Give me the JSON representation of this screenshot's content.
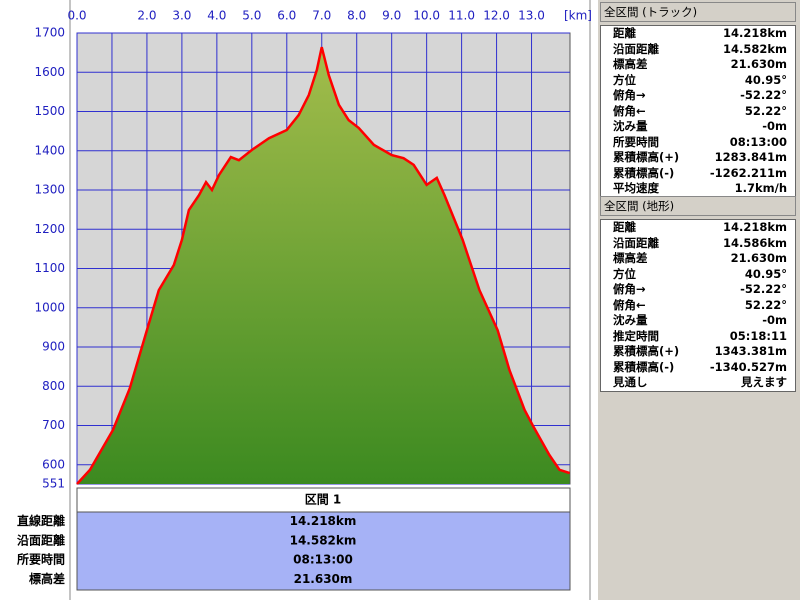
{
  "chart_data": {
    "type": "area",
    "x_unit": "[km]",
    "x": [
      0,
      0.37,
      1.03,
      1.51,
      2.0,
      2.34,
      2.77,
      3.0,
      3.2,
      3.49,
      3.69,
      3.86,
      4.06,
      4.4,
      4.63,
      5.0,
      5.49,
      6.0,
      6.34,
      6.63,
      6.86,
      7.0,
      7.2,
      7.49,
      7.77,
      8.06,
      8.49,
      9.0,
      9.34,
      9.63,
      10.0,
      10.29,
      10.51,
      11.03,
      11.51,
      12.03,
      12.37,
      12.8,
      13.03,
      13.51,
      13.8,
      14.09
    ],
    "values": [
      551,
      587,
      689,
      795,
      943,
      1045,
      1109,
      1173,
      1249,
      1287,
      1320,
      1300,
      1338,
      1384,
      1376,
      1402,
      1432,
      1453,
      1491,
      1542,
      1606,
      1664,
      1593,
      1517,
      1478,
      1458,
      1415,
      1389,
      1381,
      1364,
      1313,
      1331,
      1287,
      1173,
      1045,
      943,
      841,
      740,
      701,
      625,
      587,
      579
    ],
    "fill_top": "#a4bd4c",
    "fill_bottom": "#3c8a20",
    "line_color": "#ff0000",
    "xlim": [
      0,
      14.1
    ],
    "ylim": [
      551,
      1700
    ],
    "xticks": [
      {
        "value": 0,
        "label": "0.0"
      },
      {
        "value": 1,
        "label": null
      },
      {
        "value": 2,
        "label": "2.0"
      },
      {
        "value": 3,
        "label": "3.0"
      },
      {
        "value": 4,
        "label": "4.0"
      },
      {
        "value": 5,
        "label": "5.0"
      },
      {
        "value": 6,
        "label": "6.0"
      },
      {
        "value": 7,
        "label": "7.0"
      },
      {
        "value": 8,
        "label": "8.0"
      },
      {
        "value": 9,
        "label": "9.0"
      },
      {
        "value": 10,
        "label": "10.0"
      },
      {
        "value": 11,
        "label": "11.0"
      },
      {
        "value": 12,
        "label": "12.0"
      },
      {
        "value": 13,
        "label": "13.0"
      }
    ],
    "yticks": [
      551,
      600,
      700,
      800,
      900,
      1000,
      1100,
      1200,
      1300,
      1400,
      1500,
      1600,
      1700
    ],
    "grid": true
  },
  "section": {
    "title": "区間 1",
    "rows": [
      {
        "label": "直線距離",
        "value": "14.218km"
      },
      {
        "label": "沿面距離",
        "value": "14.582km"
      },
      {
        "label": "所要時間",
        "value": "08:13:00"
      },
      {
        "label": "標高差",
        "value": "21.630m"
      }
    ]
  },
  "tables": [
    {
      "title": "全区間 (トラック)",
      "rows": [
        [
          "距離",
          "14.218km"
        ],
        [
          "沿面距離",
          "14.582km"
        ],
        [
          "標高差",
          "21.630m"
        ],
        [
          "方位",
          "40.95°"
        ],
        [
          "俯角→",
          "-52.22°"
        ],
        [
          "俯角←",
          "52.22°"
        ],
        [
          "沈み量",
          "-0m"
        ],
        [
          "所要時間",
          "08:13:00"
        ],
        [
          "累積標高(+)",
          "1283.841m"
        ],
        [
          "累積標高(-)",
          "-1262.211m"
        ],
        [
          "平均速度",
          "1.7km/h"
        ]
      ]
    },
    {
      "title": "全区間 (地形)",
      "rows": [
        [
          "距離",
          "14.218km"
        ],
        [
          "沿面距離",
          "14.586km"
        ],
        [
          "標高差",
          "21.630m"
        ],
        [
          "方位",
          "40.95°"
        ],
        [
          "俯角→",
          "-52.22°"
        ],
        [
          "俯角←",
          "52.22°"
        ],
        [
          "沈み量",
          "-0m"
        ],
        [
          "推定時間",
          "05:18:11"
        ],
        [
          "累積標高(+)",
          "1343.381m"
        ],
        [
          "累積標高(-)",
          "-1340.527m"
        ],
        [
          "見通し",
          "見えます"
        ]
      ]
    }
  ]
}
